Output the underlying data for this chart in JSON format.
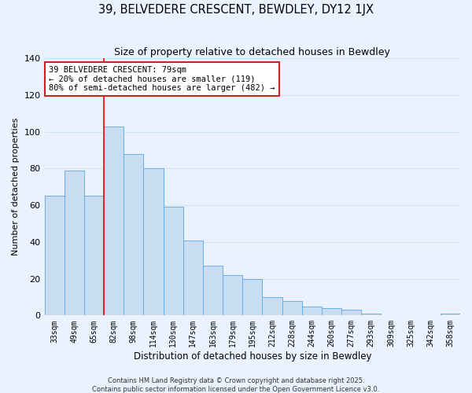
{
  "title": "39, BELVEDERE CRESCENT, BEWDLEY, DY12 1JX",
  "subtitle": "Size of property relative to detached houses in Bewdley",
  "xlabel": "Distribution of detached houses by size in Bewdley",
  "ylabel": "Number of detached properties",
  "bin_labels": [
    "33sqm",
    "49sqm",
    "65sqm",
    "82sqm",
    "98sqm",
    "114sqm",
    "130sqm",
    "147sqm",
    "163sqm",
    "179sqm",
    "195sqm",
    "212sqm",
    "228sqm",
    "244sqm",
    "260sqm",
    "277sqm",
    "293sqm",
    "309sqm",
    "325sqm",
    "342sqm",
    "358sqm"
  ],
  "bar_values": [
    65,
    79,
    65,
    103,
    88,
    80,
    59,
    41,
    27,
    22,
    20,
    10,
    8,
    5,
    4,
    3,
    1,
    0,
    0,
    0,
    1
  ],
  "bar_color": "#c9ddf2",
  "bar_edge_color": "#6aaee8",
  "red_line_index": 3,
  "annotation_title": "39 BELVEDERE CRESCENT: 79sqm",
  "annotation_line1": "← 20% of detached houses are smaller (119)",
  "annotation_line2": "80% of semi-detached houses are larger (482) →",
  "footer1": "Contains HM Land Registry data © Crown copyright and database right 2025.",
  "footer2": "Contains public sector information licensed under the Open Government Licence v3.0.",
  "ylim": [
    0,
    140
  ],
  "yticks": [
    0,
    20,
    40,
    60,
    80,
    100,
    120,
    140
  ],
  "bg_color": "#eaf2ff",
  "grid_color": "#d0e4f8",
  "figsize": [
    6.0,
    5.0
  ],
  "dpi": 100
}
